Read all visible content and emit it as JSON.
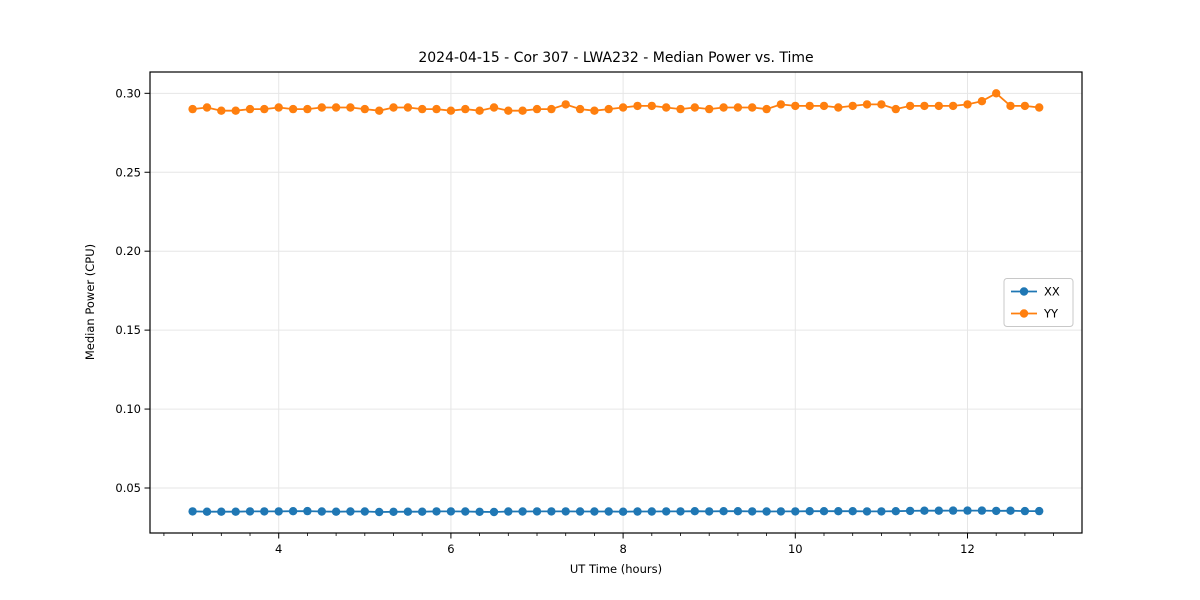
{
  "figure": {
    "background": "#ffffff",
    "text_color": "#000000",
    "grid_color": "#e6e6e6",
    "spine_color": "#000000"
  },
  "chart_data": {
    "type": "line",
    "title": "2024-04-15 - Cor 307 - LWA232 - Median Power vs. Time",
    "xlabel": "UT Time (hours)",
    "ylabel": "Median Power (CPU)",
    "xlim": [
      2.505,
      13.33
    ],
    "ylim": [
      0.0215,
      0.3135
    ],
    "x_major_ticks": [
      4,
      6,
      8,
      10,
      12
    ],
    "x_major_labels": [
      "4",
      "6",
      "8",
      "10",
      "12"
    ],
    "x_minor_step": 0.3333333,
    "y_ticks": [
      0.05,
      0.1,
      0.15,
      0.2,
      0.25,
      0.3
    ],
    "y_tick_labels": [
      "0.05",
      "0.10",
      "0.15",
      "0.20",
      "0.25",
      "0.30"
    ],
    "grid": true,
    "legend": {
      "position": "center right",
      "entries": [
        "XX",
        "YY"
      ]
    },
    "x": [
      3.0,
      3.167,
      3.333,
      3.5,
      3.667,
      3.833,
      4.0,
      4.167,
      4.333,
      4.5,
      4.667,
      4.833,
      5.0,
      5.167,
      5.333,
      5.5,
      5.667,
      5.833,
      6.0,
      6.167,
      6.333,
      6.5,
      6.667,
      6.833,
      7.0,
      7.167,
      7.333,
      7.5,
      7.667,
      7.833,
      8.0,
      8.167,
      8.333,
      8.5,
      8.667,
      8.833,
      9.0,
      9.167,
      9.333,
      9.5,
      9.667,
      9.833,
      10.0,
      10.167,
      10.333,
      10.5,
      10.667,
      10.833,
      11.0,
      11.167,
      11.333,
      11.5,
      11.667,
      11.833,
      12.0,
      12.167,
      12.333,
      12.5,
      12.667,
      12.833
    ],
    "series": [
      {
        "name": "XX",
        "color": "#1f77b4",
        "values": [
          0.0352,
          0.035,
          0.035,
          0.035,
          0.0352,
          0.0352,
          0.0352,
          0.0353,
          0.0354,
          0.0351,
          0.035,
          0.0351,
          0.0351,
          0.0348,
          0.0349,
          0.035,
          0.035,
          0.0352,
          0.0352,
          0.0351,
          0.0349,
          0.0348,
          0.0351,
          0.0351,
          0.0352,
          0.0352,
          0.0352,
          0.0351,
          0.0351,
          0.0351,
          0.035,
          0.0351,
          0.0351,
          0.0352,
          0.0352,
          0.0353,
          0.0352,
          0.0353,
          0.0353,
          0.0352,
          0.0351,
          0.0352,
          0.0352,
          0.0353,
          0.0353,
          0.0353,
          0.0353,
          0.0352,
          0.0352,
          0.0353,
          0.0355,
          0.0356,
          0.0356,
          0.0357,
          0.0357,
          0.0357,
          0.0355,
          0.0356,
          0.0354,
          0.0354
        ]
      },
      {
        "name": "YY",
        "color": "#ff7f0e",
        "values": [
          0.29,
          0.291,
          0.289,
          0.289,
          0.29,
          0.29,
          0.291,
          0.29,
          0.29,
          0.291,
          0.291,
          0.291,
          0.29,
          0.289,
          0.291,
          0.291,
          0.29,
          0.29,
          0.289,
          0.29,
          0.289,
          0.291,
          0.289,
          0.289,
          0.29,
          0.29,
          0.293,
          0.29,
          0.289,
          0.29,
          0.291,
          0.292,
          0.292,
          0.291,
          0.29,
          0.291,
          0.29,
          0.291,
          0.291,
          0.291,
          0.29,
          0.293,
          0.292,
          0.292,
          0.292,
          0.291,
          0.292,
          0.293,
          0.293,
          0.29,
          0.292,
          0.292,
          0.292,
          0.292,
          0.293,
          0.295,
          0.3,
          0.292,
          0.292,
          0.291
        ]
      }
    ]
  }
}
